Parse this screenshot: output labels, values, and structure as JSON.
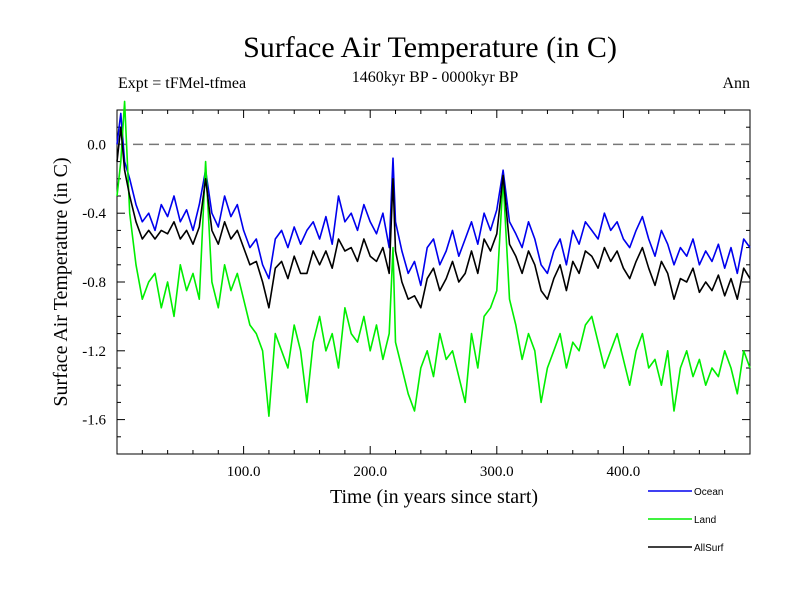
{
  "chart_data": {
    "type": "line",
    "title": "Surface Air Temperature (in C)",
    "subtitle": "1460kyr BP - 0000kyr BP",
    "left_label": "Expt = tFMel-tfmea",
    "right_label": "Ann",
    "xlabel": "Time (in years since start)",
    "ylabel": "Surface Air Temperature (in C)",
    "xlim": [
      0,
      500
    ],
    "ylim": [
      -1.8,
      0.2
    ],
    "x_major_ticks": [
      100,
      200,
      300,
      400
    ],
    "x_tick_labels": [
      "100.0",
      "200.0",
      "300.0",
      "400.0"
    ],
    "y_major_ticks": [
      0.0,
      -0.4,
      -0.8,
      -1.2,
      -1.6
    ],
    "y_tick_labels": [
      "0.0",
      "-0.4",
      "-0.8",
      "-1.2",
      "-1.6"
    ],
    "reference_line": 0.0,
    "grid": false,
    "legend_position": "bottom-right",
    "series": [
      {
        "name": "Ocean",
        "color": "#0000ee",
        "x": [
          0,
          3,
          6,
          10,
          15,
          20,
          25,
          30,
          35,
          40,
          45,
          50,
          55,
          60,
          65,
          70,
          75,
          80,
          85,
          90,
          95,
          100,
          105,
          110,
          115,
          120,
          125,
          130,
          135,
          140,
          145,
          150,
          155,
          160,
          165,
          170,
          175,
          180,
          185,
          190,
          195,
          200,
          205,
          210,
          215,
          218,
          220,
          225,
          230,
          235,
          240,
          245,
          250,
          255,
          260,
          265,
          270,
          275,
          280,
          285,
          290,
          295,
          300,
          305,
          310,
          315,
          320,
          325,
          330,
          335,
          340,
          345,
          350,
          355,
          360,
          365,
          370,
          375,
          380,
          385,
          390,
          395,
          400,
          405,
          410,
          415,
          420,
          425,
          430,
          435,
          440,
          445,
          450,
          455,
          460,
          465,
          470,
          475,
          480,
          485,
          490,
          495,
          500
        ],
        "values": [
          0.0,
          0.18,
          -0.1,
          -0.2,
          -0.35,
          -0.45,
          -0.4,
          -0.5,
          -0.35,
          -0.42,
          -0.3,
          -0.45,
          -0.38,
          -0.5,
          -0.35,
          -0.15,
          -0.4,
          -0.48,
          -0.3,
          -0.42,
          -0.35,
          -0.5,
          -0.6,
          -0.55,
          -0.7,
          -0.78,
          -0.55,
          -0.5,
          -0.6,
          -0.48,
          -0.58,
          -0.5,
          -0.45,
          -0.55,
          -0.42,
          -0.58,
          -0.3,
          -0.45,
          -0.4,
          -0.5,
          -0.35,
          -0.45,
          -0.52,
          -0.4,
          -0.6,
          -0.08,
          -0.45,
          -0.62,
          -0.75,
          -0.68,
          -0.82,
          -0.6,
          -0.55,
          -0.7,
          -0.62,
          -0.5,
          -0.65,
          -0.55,
          -0.45,
          -0.58,
          -0.4,
          -0.5,
          -0.38,
          -0.15,
          -0.45,
          -0.52,
          -0.6,
          -0.45,
          -0.55,
          -0.7,
          -0.75,
          -0.62,
          -0.55,
          -0.7,
          -0.5,
          -0.58,
          -0.45,
          -0.5,
          -0.55,
          -0.4,
          -0.5,
          -0.45,
          -0.55,
          -0.6,
          -0.5,
          -0.42,
          -0.55,
          -0.65,
          -0.5,
          -0.58,
          -0.7,
          -0.6,
          -0.65,
          -0.55,
          -0.7,
          -0.62,
          -0.68,
          -0.58,
          -0.72,
          -0.6,
          -0.75,
          -0.55,
          -0.6
        ]
      },
      {
        "name": "Land",
        "color": "#00ee00",
        "x": [
          0,
          3,
          6,
          10,
          15,
          20,
          25,
          30,
          35,
          40,
          45,
          50,
          55,
          60,
          65,
          70,
          75,
          80,
          85,
          90,
          95,
          100,
          105,
          110,
          115,
          120,
          125,
          130,
          135,
          140,
          145,
          150,
          155,
          160,
          165,
          170,
          175,
          180,
          185,
          190,
          195,
          200,
          205,
          210,
          215,
          218,
          220,
          225,
          230,
          235,
          240,
          245,
          250,
          255,
          260,
          265,
          270,
          275,
          280,
          285,
          290,
          295,
          300,
          305,
          310,
          315,
          320,
          325,
          330,
          335,
          340,
          345,
          350,
          355,
          360,
          365,
          370,
          375,
          380,
          385,
          390,
          395,
          400,
          405,
          410,
          415,
          420,
          425,
          430,
          435,
          440,
          445,
          450,
          455,
          460,
          465,
          470,
          475,
          480,
          485,
          490,
          495,
          500
        ],
        "values": [
          -0.3,
          -0.1,
          0.25,
          -0.4,
          -0.7,
          -0.9,
          -0.8,
          -0.75,
          -0.95,
          -0.8,
          -1.0,
          -0.7,
          -0.85,
          -0.75,
          -0.9,
          -0.1,
          -0.8,
          -0.95,
          -0.7,
          -0.85,
          -0.75,
          -0.9,
          -1.05,
          -1.1,
          -1.2,
          -1.58,
          -1.1,
          -1.2,
          -1.3,
          -1.05,
          -1.2,
          -1.5,
          -1.15,
          -1.0,
          -1.2,
          -1.1,
          -1.3,
          -0.95,
          -1.1,
          -1.15,
          -1.0,
          -1.2,
          -1.05,
          -1.25,
          -1.1,
          -0.6,
          -1.15,
          -1.3,
          -1.45,
          -1.55,
          -1.3,
          -1.2,
          -1.35,
          -1.1,
          -1.25,
          -1.2,
          -1.35,
          -1.5,
          -1.1,
          -1.3,
          -1.0,
          -0.95,
          -0.85,
          -0.2,
          -0.9,
          -1.05,
          -1.25,
          -1.1,
          -1.2,
          -1.5,
          -1.3,
          -1.2,
          -1.1,
          -1.3,
          -1.15,
          -1.2,
          -1.05,
          -1.0,
          -1.15,
          -1.3,
          -1.2,
          -1.1,
          -1.25,
          -1.4,
          -1.2,
          -1.1,
          -1.3,
          -1.25,
          -1.4,
          -1.2,
          -1.55,
          -1.3,
          -1.2,
          -1.35,
          -1.25,
          -1.4,
          -1.3,
          -1.35,
          -1.2,
          -1.3,
          -1.45,
          -1.2,
          -1.3
        ]
      },
      {
        "name": "AllSurf",
        "color": "#000000",
        "x": [
          0,
          3,
          6,
          10,
          15,
          20,
          25,
          30,
          35,
          40,
          45,
          50,
          55,
          60,
          65,
          70,
          75,
          80,
          85,
          90,
          95,
          100,
          105,
          110,
          115,
          120,
          125,
          130,
          135,
          140,
          145,
          150,
          155,
          160,
          165,
          170,
          175,
          180,
          185,
          190,
          195,
          200,
          205,
          210,
          215,
          218,
          220,
          225,
          230,
          235,
          240,
          245,
          250,
          255,
          260,
          265,
          270,
          275,
          280,
          285,
          290,
          295,
          300,
          305,
          310,
          315,
          320,
          325,
          330,
          335,
          340,
          345,
          350,
          355,
          360,
          365,
          370,
          375,
          380,
          385,
          390,
          395,
          400,
          405,
          410,
          415,
          420,
          425,
          430,
          435,
          440,
          445,
          450,
          455,
          460,
          465,
          470,
          475,
          480,
          485,
          490,
          495,
          500
        ],
        "values": [
          -0.1,
          0.1,
          -0.15,
          -0.3,
          -0.45,
          -0.55,
          -0.5,
          -0.55,
          -0.5,
          -0.52,
          -0.45,
          -0.55,
          -0.5,
          -0.58,
          -0.48,
          -0.2,
          -0.5,
          -0.58,
          -0.45,
          -0.55,
          -0.5,
          -0.6,
          -0.7,
          -0.68,
          -0.8,
          -0.95,
          -0.72,
          -0.68,
          -0.78,
          -0.65,
          -0.75,
          -0.75,
          -0.62,
          -0.7,
          -0.62,
          -0.72,
          -0.55,
          -0.62,
          -0.6,
          -0.68,
          -0.55,
          -0.65,
          -0.68,
          -0.6,
          -0.75,
          -0.2,
          -0.62,
          -0.8,
          -0.9,
          -0.88,
          -0.95,
          -0.78,
          -0.72,
          -0.85,
          -0.78,
          -0.68,
          -0.8,
          -0.75,
          -0.62,
          -0.75,
          -0.55,
          -0.62,
          -0.52,
          -0.18,
          -0.58,
          -0.65,
          -0.75,
          -0.62,
          -0.7,
          -0.85,
          -0.9,
          -0.78,
          -0.7,
          -0.85,
          -0.68,
          -0.75,
          -0.62,
          -0.65,
          -0.72,
          -0.6,
          -0.68,
          -0.62,
          -0.72,
          -0.78,
          -0.68,
          -0.6,
          -0.72,
          -0.82,
          -0.68,
          -0.75,
          -0.9,
          -0.78,
          -0.8,
          -0.72,
          -0.86,
          -0.8,
          -0.85,
          -0.76,
          -0.88,
          -0.78,
          -0.9,
          -0.72,
          -0.78
        ]
      }
    ]
  }
}
